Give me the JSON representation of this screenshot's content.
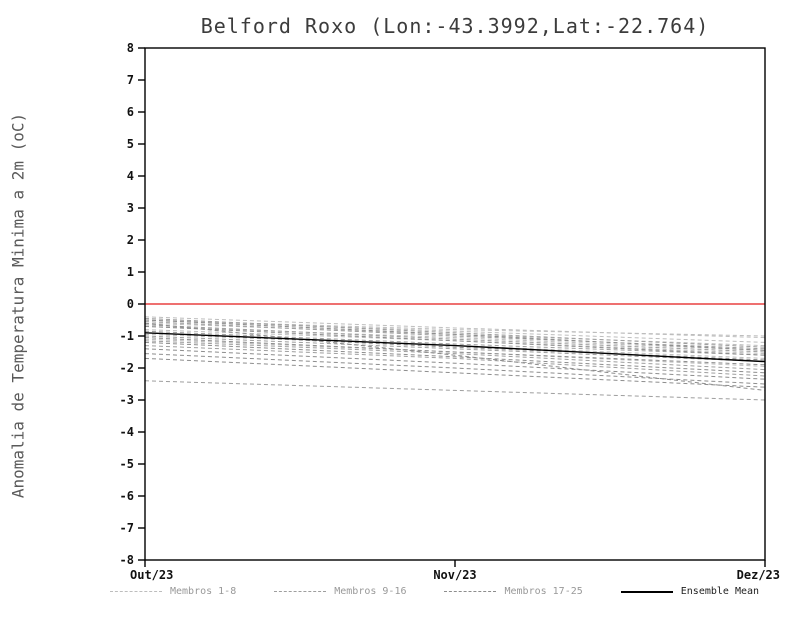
{
  "chart_data": {
    "type": "line",
    "title": "Belford Roxo (Lon:-43.3992,Lat:-22.764)",
    "ylabel": "Anomalia de Temperatura Minima a 2m (oC)",
    "xlabel": "",
    "categories": [
      "Out/23",
      "Nov/23",
      "Dez/23"
    ],
    "ylim": [
      -8,
      8
    ],
    "ytick_step": 1,
    "grid": false,
    "legend_position": "bottom",
    "zero_line": {
      "value": 0,
      "color": "#e84040"
    },
    "colors": {
      "frame": "#000000",
      "tick_label": "#111111",
      "title": "#3c3c3c",
      "axis_label": "#5a5a5a",
      "mean_line": "#000000",
      "legend_member_text": "#999999",
      "legend_mean_text": "#222222"
    },
    "series": [
      {
        "name": "Membros 1-8",
        "style": "dashed",
        "color": "#bdbdbd",
        "members": [
          [
            -0.4,
            -0.75,
            -1.05
          ],
          [
            -0.5,
            -0.85,
            -1.2
          ],
          [
            -0.6,
            -0.95,
            -1.3
          ],
          [
            -0.7,
            -1.05,
            -1.45
          ],
          [
            -0.8,
            -1.15,
            -1.55
          ],
          [
            -0.95,
            -1.3,
            -1.7
          ],
          [
            -1.1,
            -1.5,
            -1.95
          ],
          [
            -0.5,
            -0.8,
            -1.0
          ]
        ]
      },
      {
        "name": "Membros 9-16",
        "style": "dashed",
        "color": "#9e9e9e",
        "members": [
          [
            -0.45,
            -0.9,
            -1.35
          ],
          [
            -0.55,
            -1.0,
            -1.4
          ],
          [
            -0.65,
            -1.1,
            -1.5
          ],
          [
            -0.85,
            -1.25,
            -1.6
          ],
          [
            -1.0,
            -1.4,
            -1.8
          ],
          [
            -1.15,
            -1.55,
            -2.05
          ],
          [
            -1.3,
            -1.7,
            -2.25
          ],
          [
            -2.4,
            -2.7,
            -3.0
          ]
        ]
      },
      {
        "name": "Membros 17-25",
        "style": "dashed",
        "color": "#8d8d8d",
        "members": [
          [
            -0.5,
            -0.95,
            -1.45
          ],
          [
            -0.7,
            -1.15,
            -1.6
          ],
          [
            -0.9,
            -1.35,
            -1.75
          ],
          [
            -1.05,
            -1.5,
            -1.9
          ],
          [
            -1.2,
            -1.65,
            -2.15
          ],
          [
            -1.4,
            -1.85,
            -2.35
          ],
          [
            -1.55,
            -2.0,
            -2.5
          ],
          [
            -1.7,
            -2.15,
            -2.6
          ],
          [
            -0.6,
            -1.6,
            -2.7
          ]
        ]
      },
      {
        "name": "Ensemble Mean",
        "style": "solid",
        "color": "#000000",
        "members": [
          [
            -0.9,
            -1.3,
            -1.8
          ]
        ]
      }
    ]
  }
}
